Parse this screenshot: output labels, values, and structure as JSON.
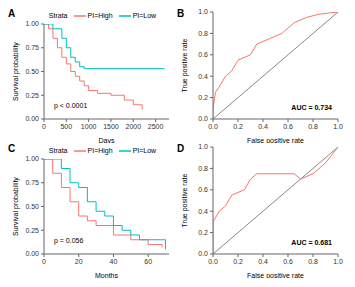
{
  "chart_data": [
    {
      "type": "line",
      "title": "A",
      "line_style": "step",
      "legend": "top",
      "legend_title": "Strata",
      "x_label": "Days",
      "y_label": "Survival probability",
      "annotations": [
        "p < 0.0001"
      ],
      "xlim": [
        0,
        2800
      ],
      "xticks": [
        0,
        500,
        1000,
        1500,
        2000,
        2500
      ],
      "ylim": [
        0,
        1
      ],
      "yticks": [
        {
          "value": 0,
          "label": "0.00"
        },
        {
          "value": 0.25,
          "label": "0.25"
        },
        {
          "value": 0.5,
          "label": "0.50"
        },
        {
          "value": 0.75,
          "label": "0.75"
        },
        {
          "value": 1,
          "label": "1.00"
        }
      ],
      "series": [
        {
          "name": "PI=High",
          "color": "#F8766D",
          "x": [
            0,
            100,
            200,
            300,
            400,
            500,
            600,
            700,
            800,
            900,
            1000,
            1200,
            1500,
            1800,
            2000,
            2200
          ],
          "values": [
            1,
            0.95,
            0.85,
            0.75,
            0.65,
            0.58,
            0.5,
            0.45,
            0.4,
            0.35,
            0.3,
            0.27,
            0.25,
            0.2,
            0.15,
            0.1
          ]
        },
        {
          "name": "PI=Low",
          "color": "#00BFC4",
          "x": [
            0,
            200,
            400,
            500,
            600,
            700,
            800,
            900,
            2700
          ],
          "values": [
            1,
            0.95,
            0.85,
            0.75,
            0.65,
            0.6,
            0.55,
            0.53,
            0.53
          ]
        }
      ]
    },
    {
      "type": "line",
      "title": "B",
      "line_style": "solid",
      "x_label": "False positive rate",
      "y_label": "True positive rate",
      "annotations": [
        "AUC = 0.734"
      ],
      "xlim": [
        0,
        1
      ],
      "xticks": [
        {
          "value": 0,
          "label": "0.0"
        },
        0.2,
        0.4,
        0.6,
        0.8,
        {
          "value": 1,
          "label": "1.0"
        }
      ],
      "ylim": [
        0,
        1
      ],
      "yticks": [
        {
          "value": 0,
          "label": "0.0"
        },
        0.2,
        0.4,
        0.6,
        0.8,
        {
          "value": 1,
          "label": "1.0"
        }
      ],
      "series": [
        {
          "color": "#F8766D",
          "x": [
            0,
            0,
            0.02,
            0.05,
            0.1,
            0.15,
            0.2,
            0.3,
            0.35,
            0.45,
            0.55,
            0.65,
            0.75,
            0.85,
            1
          ],
          "values": [
            0,
            0.1,
            0.25,
            0.3,
            0.4,
            0.45,
            0.55,
            0.6,
            0.7,
            0.75,
            0.8,
            0.9,
            0.95,
            0.98,
            1
          ]
        },
        {
          "color": "#888888",
          "x": [
            0,
            1
          ],
          "values": [
            0,
            1
          ]
        }
      ]
    },
    {
      "type": "line",
      "title": "C",
      "line_style": "step",
      "legend": "top",
      "legend_title": "Strata",
      "x_label": "Months",
      "y_label": "Survival probability",
      "annotations": [
        "p = 0.056"
      ],
      "xlim": [
        0,
        72
      ],
      "xticks": [
        0,
        20,
        40,
        60
      ],
      "ylim": [
        0,
        1
      ],
      "yticks": [
        {
          "value": 0,
          "label": "0.00"
        },
        {
          "value": 0.25,
          "label": "0.25"
        },
        {
          "value": 0.5,
          "label": "0.50"
        },
        {
          "value": 0.75,
          "label": "0.75"
        },
        {
          "value": 1,
          "label": "1.00"
        }
      ],
      "series": [
        {
          "name": "PI=High",
          "color": "#F8766D",
          "x": [
            0,
            5,
            10,
            15,
            20,
            25,
            30,
            40,
            50,
            60,
            68
          ],
          "values": [
            1,
            0.85,
            0.7,
            0.55,
            0.4,
            0.35,
            0.3,
            0.2,
            0.15,
            0.1,
            0.07
          ]
        },
        {
          "name": "PI=Low",
          "color": "#00BFC4",
          "x": [
            0,
            10,
            15,
            20,
            25,
            30,
            35,
            40,
            45,
            50,
            55,
            70
          ],
          "values": [
            1,
            0.9,
            0.75,
            0.7,
            0.55,
            0.45,
            0.4,
            0.3,
            0.25,
            0.2,
            0.15,
            0.05
          ]
        }
      ]
    },
    {
      "type": "line",
      "title": "D",
      "line_style": "solid",
      "x_label": "False positive rate",
      "y_label": "True positive rate",
      "annotations": [
        "AUC = 0.681"
      ],
      "xlim": [
        0,
        1
      ],
      "xticks": [
        {
          "value": 0,
          "label": "0.0"
        },
        0.2,
        0.4,
        0.6,
        0.8,
        {
          "value": 1,
          "label": "1.0"
        }
      ],
      "ylim": [
        0,
        1
      ],
      "yticks": [
        {
          "value": 0,
          "label": "0.0"
        },
        0.2,
        0.4,
        0.6,
        0.8,
        {
          "value": 1,
          "label": "1.0"
        }
      ],
      "series": [
        {
          "color": "#F8766D",
          "x": [
            0,
            0,
            0.05,
            0.1,
            0.15,
            0.25,
            0.3,
            0.35,
            0.5,
            0.65,
            0.7,
            0.8,
            0.9,
            1
          ],
          "values": [
            0,
            0.3,
            0.4,
            0.45,
            0.55,
            0.6,
            0.7,
            0.75,
            0.75,
            0.75,
            0.7,
            0.75,
            0.85,
            1
          ]
        },
        {
          "color": "#888888",
          "x": [
            0,
            1
          ],
          "values": [
            0,
            1
          ]
        }
      ]
    }
  ]
}
